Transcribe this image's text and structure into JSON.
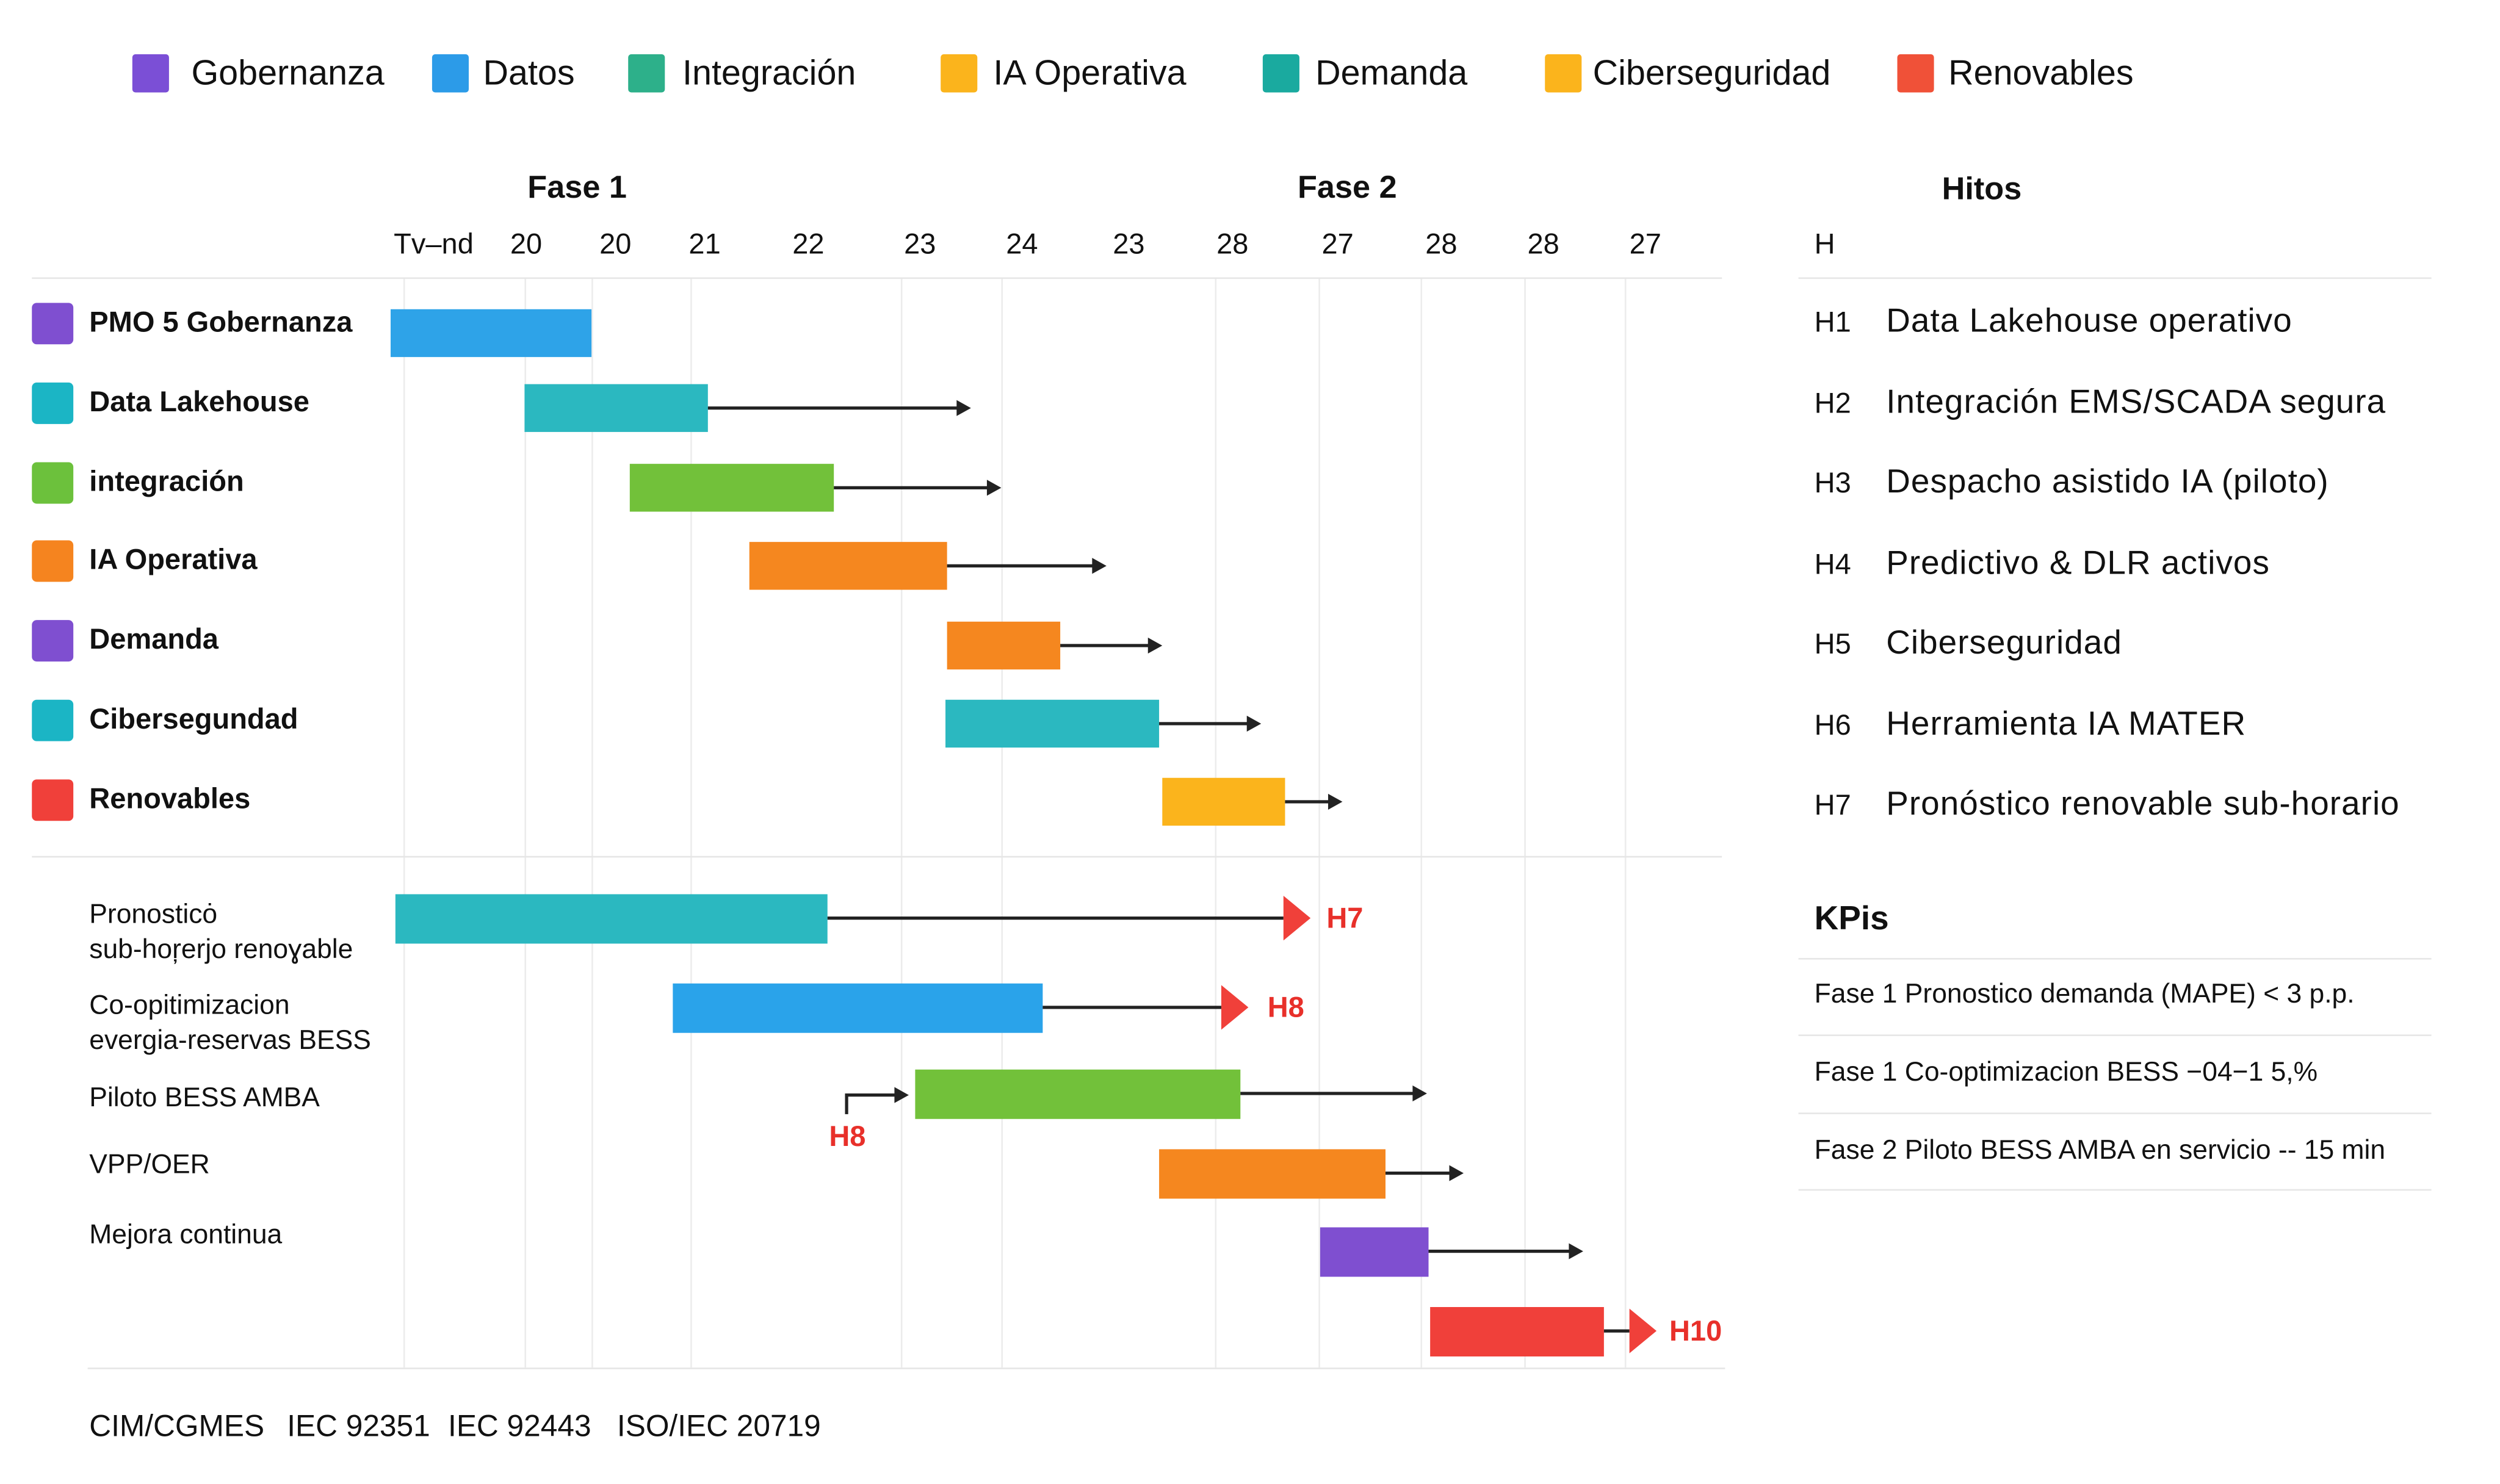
{
  "legend": [
    {
      "label": "Gobernanza",
      "color": "#7b4fd6"
    },
    {
      "label": "Datos",
      "color": "#2c9be8"
    },
    {
      "label": "Integración",
      "color": "#2db08a"
    },
    {
      "label": "IA Operativa",
      "color": "#fbb41c"
    },
    {
      "label": "Demanda",
      "color": "#1aaa9f"
    },
    {
      "label": "Ciberseguridad",
      "color": "#fbb41c"
    },
    {
      "label": "Renovables",
      "color": "#f05138"
    }
  ],
  "timeline": {
    "phases": [
      "Fase 1",
      "Fase 2"
    ],
    "ticks": [
      "Tv–nd",
      "20",
      "20",
      "21",
      "22",
      "23",
      "24",
      "23",
      "28",
      "27",
      "28",
      "28",
      "27"
    ]
  },
  "workstreams": [
    {
      "label": "PMO 5 Gobernanza",
      "marker_color": "#7f4fd0",
      "bar_color": "#2ea3e8"
    },
    {
      "label": "Data Lakehouse",
      "marker_color": "#1bb5c5",
      "bar_color": "#2bb8c0"
    },
    {
      "label": "integración",
      "marker_color": "#6cc13c",
      "bar_color": "#72c13a"
    },
    {
      "label": "IA Operativa",
      "marker_color": "#f5841f",
      "bar_color": "#f5871f"
    },
    {
      "label": "Demanda",
      "marker_color": "#7f4fd0",
      "bar_color": "#f5871f"
    },
    {
      "label": "Cibersegundad",
      "marker_color": "#1bb5c5",
      "bar_color": "#2bb8c0"
    },
    {
      "label": "Renovables",
      "marker_color": "#f0403a",
      "bar_color": "#fbb41c"
    }
  ],
  "initiatives": [
    {
      "label": "Pronosticȯ\nsub-hoŗerjo renoɣable",
      "bar_color": "#2bb8c0",
      "milestone": "H7"
    },
    {
      "label": "Co-opitimizacion\nevergia-reservas BESS",
      "bar_color": "#2aa3ea",
      "milestone": "H8"
    },
    {
      "label": "Piloto BESS AMBA",
      "bar_color": "#72c13a",
      "milestone": "H8"
    },
    {
      "label": "VPP/OER",
      "bar_color": "#f5871f",
      "milestone": ""
    },
    {
      "label": "Mejora continua",
      "bar_color": "#7f4fd0",
      "milestone": ""
    },
    {
      "label": "",
      "bar_color": "#f0403a",
      "milestone": "H10"
    }
  ],
  "hitos": {
    "title": "Hitos",
    "column_header": "H",
    "items": [
      {
        "id": "H1",
        "text": "Data Lakehouse operativo"
      },
      {
        "id": "H2",
        "text": "Integración EMS/SCADA segura"
      },
      {
        "id": "H3",
        "text": "Despacho asistido IA (piloto)"
      },
      {
        "id": "H4",
        "text": "Predictivo & DLR activos"
      },
      {
        "id": "H5",
        "text": "Ciberseguridad"
      },
      {
        "id": "H6",
        "text": "Herramienta IA MATER"
      },
      {
        "id": "H7",
        "text": "Pronóstico renovable sub-horario"
      }
    ]
  },
  "kpis": {
    "title": "KPis",
    "items": [
      "Fase 1 Pronostico demanda (MAPE) < 3 p.p.",
      "Fase 1 Co-optimizacion BESS   −04−1 5,%",
      "Fase 2 Piloto BESS AMBA en servicio  -- 15 min"
    ]
  },
  "standards": [
    "CIM/CGMES",
    "IEC 92351",
    "IEC 92443",
    "ISO/IEC 20719"
  ]
}
